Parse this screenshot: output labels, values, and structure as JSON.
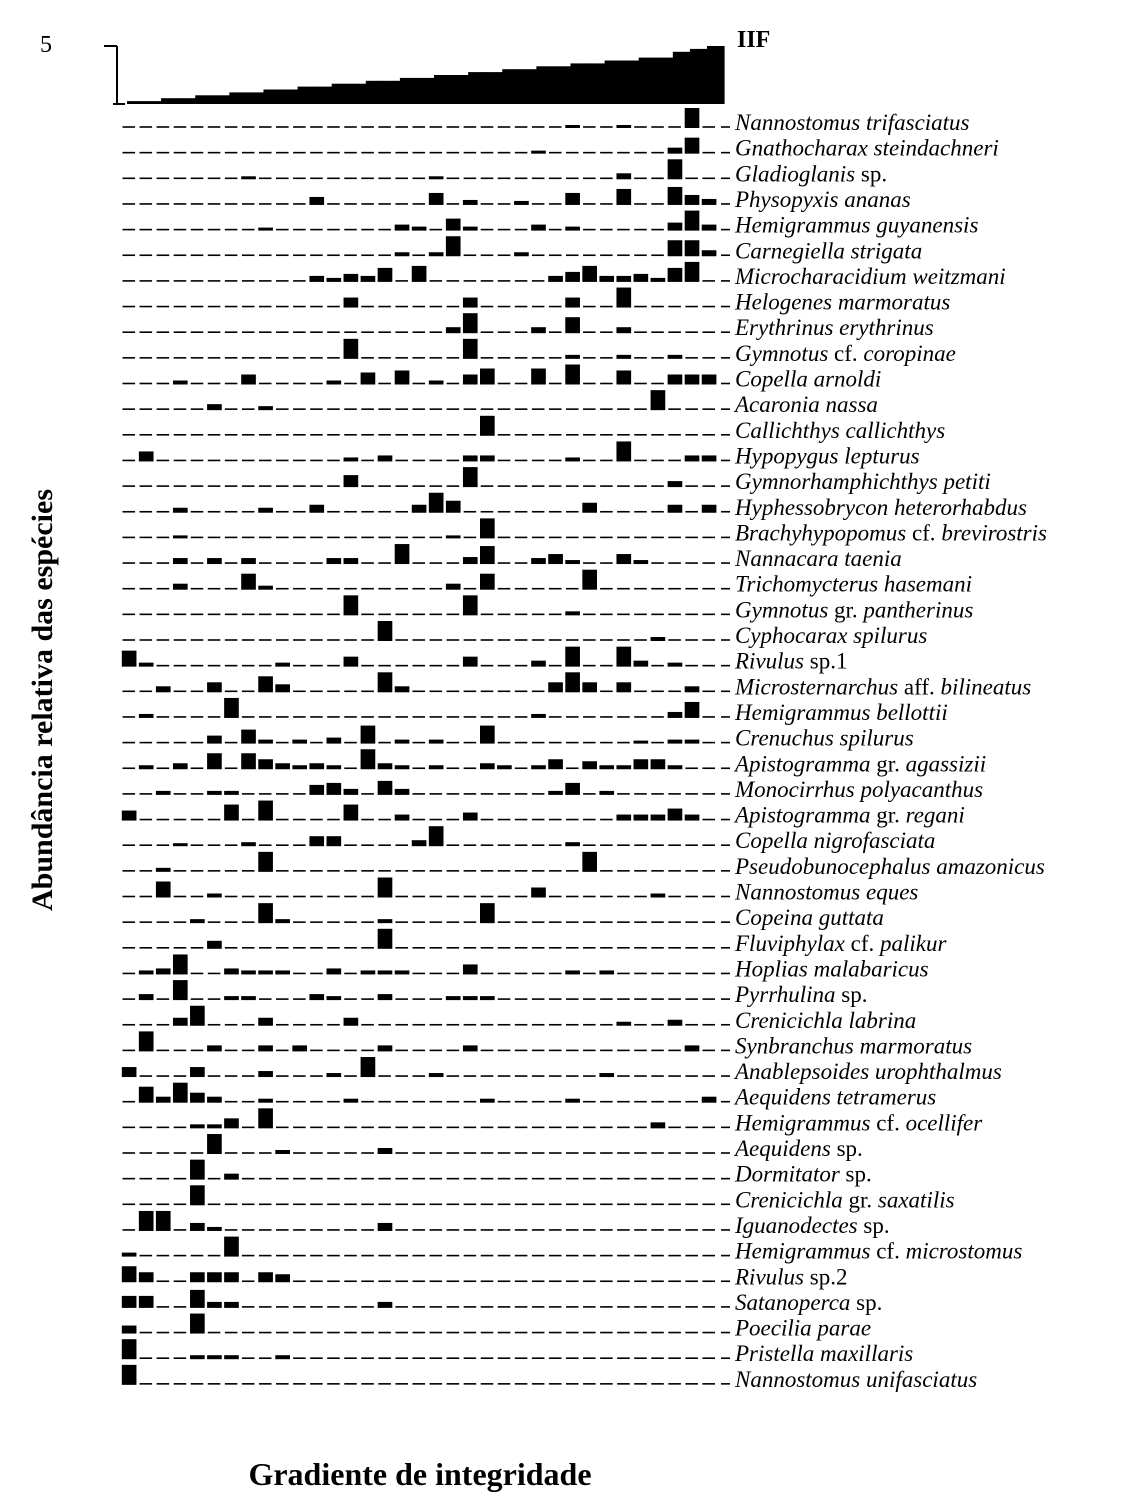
{
  "chart_data": {
    "type": "bar",
    "iif_label": "IIF",
    "iif_tick_label": "5",
    "y_axis_title": "Abundância relativa das espécies",
    "x_axis_title": "Gradiente de integridade",
    "n_sites": 35,
    "iif_values": [
      0.05,
      0.05,
      0.1,
      0.1,
      0.15,
      0.15,
      0.2,
      0.2,
      0.25,
      0.25,
      0.3,
      0.3,
      0.35,
      0.35,
      0.4,
      0.4,
      0.45,
      0.45,
      0.5,
      0.5,
      0.55,
      0.55,
      0.6,
      0.6,
      0.65,
      0.65,
      0.7,
      0.7,
      0.75,
      0.75,
      0.8,
      0.8,
      0.9,
      0.95,
      1.0
    ],
    "species": [
      {
        "parts": [
          {
            "t": "Nannostomus trifasciatus"
          }
        ],
        "values": {
          "26": 0.15,
          "29": 0.15,
          "33": 1
        }
      },
      {
        "parts": [
          {
            "t": "Gnathocharax steindachneri"
          }
        ],
        "values": {
          "24": 0.15,
          "32": 0.3,
          "33": 0.8
        }
      },
      {
        "parts": [
          {
            "t": "Gladioglanis"
          },
          {
            "t": " sp.",
            "up": true
          }
        ],
        "values": {
          "7": 0.15,
          "18": 0.15,
          "29": 0.3,
          "32": 1
        }
      },
      {
        "parts": [
          {
            "t": "Physopyxis ananas"
          }
        ],
        "values": {
          "11": 0.4,
          "18": 0.6,
          "20": 0.25,
          "23": 0.2,
          "26": 0.6,
          "29": 0.8,
          "32": 0.9,
          "33": 0.5,
          "34": 0.3
        }
      },
      {
        "parts": [
          {
            "t": "Hemigrammus guyanensis"
          }
        ],
        "values": {
          "8": 0.15,
          "16": 0.3,
          "17": 0.2,
          "19": 0.6,
          "20": 0.2,
          "24": 0.3,
          "26": 0.2,
          "32": 0.4,
          "33": 1,
          "34": 0.3
        }
      },
      {
        "parts": [
          {
            "t": "Carnegiella strigata"
          }
        ],
        "values": {
          "16": 0.2,
          "18": 0.2,
          "19": 1,
          "23": 0.2,
          "32": 0.8,
          "33": 0.8,
          "34": 0.3
        }
      },
      {
        "parts": [
          {
            "t": "Microcharacidium  weitzmani"
          }
        ],
        "values": {
          "11": 0.3,
          "12": 0.2,
          "13": 0.4,
          "14": 0.3,
          "15": 0.7,
          "17": 0.8,
          "25": 0.3,
          "26": 0.5,
          "27": 0.8,
          "28": 0.3,
          "29": 0.3,
          "30": 0.4,
          "31": 0.2,
          "32": 0.7,
          "33": 1
        }
      },
      {
        "parts": [
          {
            "t": "Helogenes marmoratus"
          }
        ],
        "values": {
          "13": 0.5,
          "20": 0.5,
          "26": 0.5,
          "29": 1
        }
      },
      {
        "parts": [
          {
            "t": "Erythrinus erythrinus"
          }
        ],
        "values": {
          "19": 0.3,
          "20": 1,
          "24": 0.3,
          "26": 0.8,
          "29": 0.3
        }
      },
      {
        "parts": [
          {
            "t": "Gymnotus"
          },
          {
            "t": " cf. ",
            "up": true
          },
          {
            "t": "coropinae"
          }
        ],
        "values": {
          "13": 1,
          "20": 1,
          "26": 0.2,
          "29": 0.2,
          "32": 0.2
        }
      },
      {
        "parts": [
          {
            "t": "Copella arnoldi"
          }
        ],
        "values": {
          "3": 0.2,
          "7": 0.5,
          "12": 0.2,
          "14": 0.6,
          "16": 0.7,
          "18": 0.2,
          "20": 0.5,
          "21": 0.8,
          "24": 0.8,
          "26": 1,
          "29": 0.7,
          "32": 0.5,
          "33": 0.5,
          "34": 0.5
        }
      },
      {
        "parts": [
          {
            "t": "Acaronia nassa"
          }
        ],
        "values": {
          "5": 0.3,
          "8": 0.2,
          "31": 1
        }
      },
      {
        "parts": [
          {
            "t": "Callichthys callichthys"
          }
        ],
        "values": {
          "21": 1
        }
      },
      {
        "parts": [
          {
            "t": "Hypopygus lepturus"
          }
        ],
        "values": {
          "1": 0.5,
          "13": 0.2,
          "15": 0.3,
          "20": 0.3,
          "21": 0.3,
          "26": 0.2,
          "29": 1,
          "33": 0.3,
          "34": 0.3
        }
      },
      {
        "parts": [
          {
            "t": "Gymnorhamphichthys petiti"
          }
        ],
        "values": {
          "13": 0.6,
          "20": 1,
          "32": 0.3
        }
      },
      {
        "parts": [
          {
            "t": "Hyphessobrycon heterorhabdus"
          }
        ],
        "values": {
          "3": 0.25,
          "8": 0.25,
          "11": 0.4,
          "17": 0.4,
          "18": 1,
          "19": 0.6,
          "27": 0.5,
          "32": 0.4,
          "34": 0.4
        }
      },
      {
        "parts": [
          {
            "t": "Brachyhypopomus"
          },
          {
            "t": " cf. ",
            "up": true
          },
          {
            "t": "brevirostris"
          }
        ],
        "values": {
          "3": 0.15,
          "19": 0.15,
          "21": 1
        }
      },
      {
        "parts": [
          {
            "t": "Nannacara taenia"
          }
        ],
        "values": {
          "3": 0.3,
          "5": 0.3,
          "7": 0.3,
          "12": 0.3,
          "13": 0.3,
          "16": 1,
          "20": 0.35,
          "21": 0.9,
          "24": 0.3,
          "25": 0.5,
          "26": 0.2,
          "29": 0.5,
          "30": 0.2
        }
      },
      {
        "parts": [
          {
            "t": "Trichomycterus hasemani"
          }
        ],
        "values": {
          "3": 0.3,
          "7": 0.8,
          "8": 0.2,
          "19": 0.3,
          "21": 0.8,
          "27": 1
        }
      },
      {
        "parts": [
          {
            "t": "Gymnotus"
          },
          {
            "t": " gr. ",
            "up": true
          },
          {
            "t": "pantherinus"
          }
        ],
        "values": {
          "13": 1,
          "20": 1,
          "26": 0.2
        }
      },
      {
        "parts": [
          {
            "t": "Cyphocarax spilurus"
          }
        ],
        "values": {
          "15": 1,
          "31": 0.2
        }
      },
      {
        "parts": [
          {
            "t": "Rivulus"
          },
          {
            "t": " sp.1",
            "up": true
          }
        ],
        "values": {
          "0": 0.8,
          "1": 0.2,
          "9": 0.2,
          "13": 0.5,
          "20": 0.5,
          "24": 0.3,
          "26": 1,
          "29": 1,
          "30": 0.3,
          "32": 0.2
        }
      },
      {
        "parts": [
          {
            "t": "Microsternarchus"
          },
          {
            "t": "  aff. ",
            "up": true
          },
          {
            "t": "bilineatus"
          }
        ],
        "values": {
          "2": 0.3,
          "5": 0.5,
          "8": 0.8,
          "9": 0.4,
          "15": 1,
          "16": 0.3,
          "25": 0.5,
          "26": 1,
          "27": 0.5,
          "29": 0.5,
          "33": 0.3
        }
      },
      {
        "parts": [
          {
            "t": "Hemigrammus bellottii"
          }
        ],
        "values": {
          "1": 0.2,
          "6": 1,
          "24": 0.2,
          "32": 0.3,
          "33": 0.8
        }
      },
      {
        "parts": [
          {
            "t": "Crenuchus spilurus"
          }
        ],
        "values": {
          "5": 0.4,
          "7": 0.7,
          "8": 0.2,
          "10": 0.2,
          "12": 0.3,
          "14": 0.9,
          "16": 0.2,
          "18": 0.2,
          "21": 0.9,
          "30": 0.15,
          "32": 0.2,
          "33": 0.2
        }
      },
      {
        "parts": [
          {
            "t": "Apistogramma"
          },
          {
            "t": " gr. ",
            "up": true
          },
          {
            "t": "agassizii"
          }
        ],
        "values": {
          "1": 0.2,
          "3": 0.3,
          "5": 0.8,
          "7": 0.8,
          "8": 0.5,
          "9": 0.3,
          "10": 0.2,
          "11": 0.3,
          "12": 0.2,
          "14": 1,
          "15": 0.3,
          "16": 0.2,
          "18": 0.2,
          "21": 0.3,
          "22": 0.2,
          "24": 0.2,
          "25": 0.5,
          "27": 0.4,
          "28": 0.2,
          "29": 0.2,
          "30": 0.5,
          "31": 0.5,
          "32": 0.2
        }
      },
      {
        "parts": [
          {
            "t": "Monocirrhus polyacanthus"
          }
        ],
        "values": {
          "2": 0.2,
          "5": 0.2,
          "6": 0.2,
          "11": 0.5,
          "12": 0.6,
          "13": 0.3,
          "15": 0.7,
          "16": 0.3,
          "25": 0.2,
          "26": 0.6,
          "28": 0.2
        }
      },
      {
        "parts": [
          {
            "t": "Apistogramma"
          },
          {
            "t": " gr. ",
            "up": true
          },
          {
            "t": "regani"
          }
        ],
        "values": {
          "0": 0.5,
          "6": 0.8,
          "8": 1,
          "13": 0.8,
          "16": 0.3,
          "20": 0.4,
          "29": 0.3,
          "30": 0.3,
          "31": 0.3,
          "32": 0.6,
          "33": 0.3
        }
      },
      {
        "parts": [
          {
            "t": "Copella nigrofasciata"
          }
        ],
        "values": {
          "3": 0.15,
          "7": 0.2,
          "11": 0.5,
          "12": 0.5,
          "17": 0.3,
          "18": 1,
          "26": 0.2
        }
      },
      {
        "parts": [
          {
            "t": "Pseudobunocephalus amazonicus"
          }
        ],
        "values": {
          "2": 0.2,
          "8": 1,
          "27": 1
        }
      },
      {
        "parts": [
          {
            "t": "Nannostomus eques"
          }
        ],
        "values": {
          "2": 0.8,
          "5": 0.2,
          "15": 1,
          "24": 0.5,
          "31": 0.2
        }
      },
      {
        "parts": [
          {
            "t": "Copeina guttata"
          }
        ],
        "values": {
          "4": 0.2,
          "8": 1,
          "9": 0.2,
          "15": 0.2,
          "21": 1
        }
      },
      {
        "parts": [
          {
            "t": "Fluviphylax"
          },
          {
            "t": " cf. ",
            "up": true
          },
          {
            "t": "palikur"
          }
        ],
        "values": {
          "5": 0.4,
          "15": 1
        }
      },
      {
        "parts": [
          {
            "t": "Hoplias malabaricus"
          }
        ],
        "values": {
          "1": 0.2,
          "2": 0.3,
          "3": 1,
          "6": 0.3,
          "7": 0.2,
          "8": 0.2,
          "9": 0.2,
          "12": 0.3,
          "14": 0.2,
          "15": 0.2,
          "16": 0.2,
          "20": 0.5,
          "26": 0.2,
          "28": 0.2
        }
      },
      {
        "parts": [
          {
            "t": "Pyrrhulina"
          },
          {
            "t": " sp.",
            "up": true
          }
        ],
        "values": {
          "1": 0.3,
          "3": 1,
          "6": 0.2,
          "7": 0.2,
          "11": 0.3,
          "12": 0.2,
          "15": 0.3,
          "19": 0.2,
          "20": 0.2,
          "21": 0.2
        }
      },
      {
        "parts": [
          {
            "t": "Crenicichla labrina"
          }
        ],
        "values": {
          "3": 0.4,
          "4": 1,
          "8": 0.4,
          "13": 0.4,
          "29": 0.2,
          "32": 0.3
        }
      },
      {
        "parts": [
          {
            "t": "Synbranchus marmoratus"
          }
        ],
        "values": {
          "1": 1,
          "5": 0.3,
          "8": 0.3,
          "10": 0.3,
          "15": 0.3,
          "20": 0.3,
          "33": 0.3
        }
      },
      {
        "parts": [
          {
            "t": "Anablepsoides urophthalmus"
          }
        ],
        "values": {
          "0": 0.5,
          "4": 0.5,
          "8": 0.3,
          "12": 0.2,
          "14": 1,
          "18": 0.2,
          "28": 0.2
        }
      },
      {
        "parts": [
          {
            "t": "Aequidens tetramerus"
          }
        ],
        "values": {
          "1": 0.8,
          "2": 0.3,
          "3": 1,
          "4": 0.5,
          "5": 0.3,
          "8": 0.2,
          "13": 0.2,
          "21": 0.2,
          "26": 0.2,
          "34": 0.3
        }
      },
      {
        "parts": [
          {
            "t": "Hemigrammus"
          },
          {
            "t": " cf. ",
            "up": true
          },
          {
            "t": "ocellifer"
          }
        ],
        "values": {
          "4": 0.2,
          "5": 0.2,
          "6": 0.5,
          "8": 1,
          "31": 0.3
        }
      },
      {
        "parts": [
          {
            "t": "Aequidens"
          },
          {
            "t": " sp.",
            "up": true
          }
        ],
        "values": {
          "5": 1,
          "9": 0.2,
          "15": 0.3
        }
      },
      {
        "parts": [
          {
            "t": "Dormitator"
          },
          {
            "t": " sp.",
            "up": true
          }
        ],
        "values": {
          "4": 1,
          "6": 0.3
        }
      },
      {
        "parts": [
          {
            "t": "Crenicichla"
          },
          {
            "t": " gr. ",
            "up": true
          },
          {
            "t": "saxatilis"
          }
        ],
        "values": {
          "4": 1
        }
      },
      {
        "parts": [
          {
            "t": "Iguanodectes"
          },
          {
            "t": " sp.",
            "up": true
          }
        ],
        "values": {
          "1": 1,
          "2": 1,
          "4": 0.4,
          "5": 0.2,
          "15": 0.4
        }
      },
      {
        "parts": [
          {
            "t": "Hemigrammus"
          },
          {
            "t": " cf. ",
            "up": true
          },
          {
            "t": "microstomus"
          }
        ],
        "values": {
          "0": 0.2,
          "6": 1
        }
      },
      {
        "parts": [
          {
            "t": "Rivulus"
          },
          {
            "t": " sp.2",
            "up": true
          }
        ],
        "values": {
          "0": 0.8,
          "1": 0.5,
          "4": 0.5,
          "5": 0.5,
          "6": 0.5,
          "8": 0.5,
          "9": 0.4
        }
      },
      {
        "parts": [
          {
            "t": "Satanoperca"
          },
          {
            "t": " sp.",
            "up": true
          }
        ],
        "values": {
          "0": 0.6,
          "1": 0.6,
          "4": 0.9,
          "5": 0.3,
          "6": 0.3,
          "15": 0.3
        }
      },
      {
        "parts": [
          {
            "t": "Poecilia parae"
          }
        ],
        "values": {
          "0": 0.4,
          "4": 1
        }
      },
      {
        "parts": [
          {
            "t": "Pristella maxillaris"
          }
        ],
        "values": {
          "0": 1,
          "4": 0.2,
          "5": 0.2,
          "6": 0.2,
          "9": 0.2
        }
      },
      {
        "parts": [
          {
            "t": "Nannostomus unifasciatus"
          }
        ],
        "values": {
          "0": 1
        }
      }
    ]
  }
}
